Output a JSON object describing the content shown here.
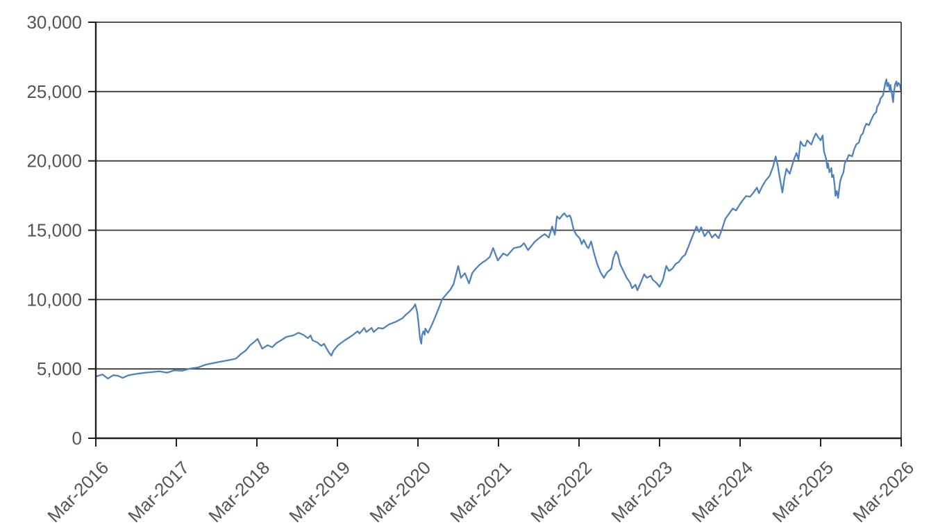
{
  "chart_data": {
    "type": "line",
    "x_axis": {
      "tick_labels": [
        "Mar-2016",
        "Mar-2017",
        "Mar-2018",
        "Mar-2019",
        "Mar-2020",
        "Mar-2021",
        "Mar-2022",
        "Mar-2023",
        "Mar-2024",
        "Mar-2025",
        "Mar-2026"
      ],
      "range_months": [
        0,
        120
      ],
      "months_per_tick": 12,
      "label_rotation_deg": -45
    },
    "y_axis": {
      "tick_labels": [
        "0",
        "5,000",
        "10,000",
        "15,000",
        "20,000",
        "25,000",
        "30,000"
      ],
      "tick_values": [
        0,
        5000,
        10000,
        15000,
        20000,
        25000,
        30000
      ],
      "ylim": [
        0,
        30000
      ]
    },
    "grid": true,
    "legend": false,
    "colors": {
      "line": "#4f81bd",
      "grid": "#3a3a3a",
      "axis": "#1f1f1f",
      "tick_text": "#545454",
      "background": "#ffffff"
    },
    "series": [
      {
        "points": [
          [
            0.0,
            4450
          ],
          [
            1.0,
            4600
          ],
          [
            1.8,
            4300
          ],
          [
            2.6,
            4550
          ],
          [
            3.3,
            4500
          ],
          [
            4.0,
            4350
          ],
          [
            4.9,
            4550
          ],
          [
            6.1,
            4650
          ],
          [
            7.4,
            4730
          ],
          [
            8.5,
            4780
          ],
          [
            9.5,
            4830
          ],
          [
            10.6,
            4730
          ],
          [
            11.7,
            4900
          ],
          [
            12.9,
            4870
          ],
          [
            14.0,
            5020
          ],
          [
            15.2,
            5100
          ],
          [
            16.4,
            5310
          ],
          [
            18.1,
            5480
          ],
          [
            19.9,
            5640
          ],
          [
            20.9,
            5750
          ],
          [
            21.6,
            6060
          ],
          [
            22.4,
            6350
          ],
          [
            23.0,
            6710
          ],
          [
            23.5,
            6900
          ],
          [
            24.1,
            7160
          ],
          [
            24.8,
            6460
          ],
          [
            25.6,
            6710
          ],
          [
            26.3,
            6560
          ],
          [
            26.9,
            6860
          ],
          [
            27.6,
            7060
          ],
          [
            28.4,
            7310
          ],
          [
            29.4,
            7410
          ],
          [
            30.2,
            7610
          ],
          [
            30.9,
            7460
          ],
          [
            31.6,
            7210
          ],
          [
            32.0,
            7410
          ],
          [
            32.3,
            7060
          ],
          [
            33.0,
            6910
          ],
          [
            33.6,
            6660
          ],
          [
            34.0,
            6810
          ],
          [
            34.4,
            6460
          ],
          [
            34.7,
            6210
          ],
          [
            35.1,
            5960
          ],
          [
            35.4,
            6310
          ],
          [
            36.1,
            6710
          ],
          [
            37.1,
            7060
          ],
          [
            38.2,
            7410
          ],
          [
            39.0,
            7710
          ],
          [
            39.3,
            7560
          ],
          [
            40.0,
            7960
          ],
          [
            40.3,
            7660
          ],
          [
            41.1,
            7960
          ],
          [
            41.4,
            7660
          ],
          [
            42.1,
            7960
          ],
          [
            42.8,
            7910
          ],
          [
            43.7,
            8210
          ],
          [
            44.7,
            8400
          ],
          [
            45.7,
            8660
          ],
          [
            46.2,
            8910
          ],
          [
            46.8,
            9160
          ],
          [
            47.3,
            9410
          ],
          [
            47.6,
            9660
          ],
          [
            47.9,
            9060
          ],
          [
            48.1,
            8210
          ],
          [
            48.3,
            7210
          ],
          [
            48.5,
            6810
          ],
          [
            48.6,
            7410
          ],
          [
            48.8,
            7710
          ],
          [
            49.0,
            7460
          ],
          [
            49.1,
            7910
          ],
          [
            49.5,
            7600
          ],
          [
            50.1,
            8200
          ],
          [
            50.7,
            8900
          ],
          [
            51.2,
            9500
          ],
          [
            51.6,
            10020
          ],
          [
            52.1,
            10300
          ],
          [
            52.8,
            10700
          ],
          [
            53.3,
            11100
          ],
          [
            54.0,
            12420
          ],
          [
            54.4,
            11570
          ],
          [
            55.0,
            11900
          ],
          [
            55.6,
            11170
          ],
          [
            56.1,
            11920
          ],
          [
            56.6,
            12220
          ],
          [
            57.1,
            12470
          ],
          [
            57.6,
            12670
          ],
          [
            58.1,
            12820
          ],
          [
            58.7,
            13070
          ],
          [
            59.2,
            13720
          ],
          [
            59.9,
            12820
          ],
          [
            60.7,
            13320
          ],
          [
            61.3,
            13170
          ],
          [
            62.3,
            13720
          ],
          [
            63.3,
            13820
          ],
          [
            63.8,
            14070
          ],
          [
            64.4,
            13570
          ],
          [
            65.4,
            14170
          ],
          [
            66.4,
            14570
          ],
          [
            66.9,
            14720
          ],
          [
            67.5,
            14470
          ],
          [
            68.0,
            15270
          ],
          [
            68.4,
            14670
          ],
          [
            68.7,
            16000
          ],
          [
            69.1,
            15820
          ],
          [
            69.5,
            16070
          ],
          [
            69.8,
            16220
          ],
          [
            70.2,
            15970
          ],
          [
            70.6,
            16070
          ],
          [
            70.8,
            15870
          ],
          [
            71.2,
            15020
          ],
          [
            71.6,
            14670
          ],
          [
            72.1,
            14420
          ],
          [
            72.4,
            14000
          ],
          [
            72.7,
            14300
          ],
          [
            73.2,
            13800
          ],
          [
            73.4,
            13700
          ],
          [
            73.8,
            14200
          ],
          [
            74.2,
            13400
          ],
          [
            74.5,
            12900
          ],
          [
            74.7,
            12570
          ],
          [
            75.2,
            11970
          ],
          [
            75.7,
            11570
          ],
          [
            76.2,
            11970
          ],
          [
            76.8,
            12220
          ],
          [
            77.1,
            12970
          ],
          [
            77.5,
            13470
          ],
          [
            77.8,
            13220
          ],
          [
            78.1,
            12570
          ],
          [
            78.6,
            12070
          ],
          [
            79.1,
            11570
          ],
          [
            79.6,
            11220
          ],
          [
            79.9,
            10820
          ],
          [
            80.4,
            11070
          ],
          [
            80.7,
            10670
          ],
          [
            81.2,
            11220
          ],
          [
            81.7,
            11820
          ],
          [
            82.1,
            11570
          ],
          [
            82.7,
            11720
          ],
          [
            83.0,
            11420
          ],
          [
            83.5,
            11220
          ],
          [
            84.0,
            10920
          ],
          [
            84.5,
            11420
          ],
          [
            85.0,
            12420
          ],
          [
            85.4,
            12070
          ],
          [
            85.9,
            12220
          ],
          [
            86.4,
            12570
          ],
          [
            86.9,
            12720
          ],
          [
            87.4,
            13070
          ],
          [
            87.8,
            13220
          ],
          [
            88.3,
            13820
          ],
          [
            88.9,
            14570
          ],
          [
            89.2,
            14920
          ],
          [
            89.5,
            15270
          ],
          [
            89.9,
            14870
          ],
          [
            90.2,
            15220
          ],
          [
            90.7,
            14570
          ],
          [
            91.3,
            14970
          ],
          [
            91.8,
            14470
          ],
          [
            92.3,
            14720
          ],
          [
            92.8,
            14420
          ],
          [
            93.3,
            15070
          ],
          [
            93.8,
            15820
          ],
          [
            94.4,
            16220
          ],
          [
            94.9,
            16570
          ],
          [
            95.4,
            16420
          ],
          [
            95.9,
            16820
          ],
          [
            96.4,
            17170
          ],
          [
            96.9,
            17470
          ],
          [
            97.5,
            17420
          ],
          [
            98.0,
            17720
          ],
          [
            98.5,
            18070
          ],
          [
            98.8,
            17670
          ],
          [
            99.3,
            18170
          ],
          [
            99.8,
            18570
          ],
          [
            100.4,
            18920
          ],
          [
            100.9,
            19570
          ],
          [
            101.3,
            20320
          ],
          [
            101.6,
            19720
          ],
          [
            101.8,
            19070
          ],
          [
            102.3,
            17720
          ],
          [
            102.6,
            18720
          ],
          [
            102.9,
            19420
          ],
          [
            103.4,
            19070
          ],
          [
            103.7,
            19570
          ],
          [
            104.0,
            20070
          ],
          [
            104.4,
            20570
          ],
          [
            104.7,
            20100
          ],
          [
            105.0,
            21400
          ],
          [
            105.4,
            21100
          ],
          [
            105.7,
            21080
          ],
          [
            106.0,
            21480
          ],
          [
            106.6,
            21180
          ],
          [
            107.0,
            21680
          ],
          [
            107.3,
            21980
          ],
          [
            107.6,
            21730
          ],
          [
            108.0,
            21480
          ],
          [
            108.3,
            21830
          ],
          [
            108.5,
            20680
          ],
          [
            108.8,
            20180
          ],
          [
            109.0,
            19480
          ],
          [
            109.1,
            19830
          ],
          [
            109.3,
            19180
          ],
          [
            109.6,
            19480
          ],
          [
            109.7,
            18830
          ],
          [
            109.9,
            18980
          ],
          [
            110.1,
            18180
          ],
          [
            110.2,
            17480
          ],
          [
            110.4,
            17830
          ],
          [
            110.6,
            17330
          ],
          [
            110.9,
            18480
          ],
          [
            111.1,
            18830
          ],
          [
            111.4,
            19180
          ],
          [
            111.6,
            19830
          ],
          [
            111.9,
            20080
          ],
          [
            112.2,
            20430
          ],
          [
            112.7,
            20330
          ],
          [
            113.0,
            20830
          ],
          [
            113.3,
            21180
          ],
          [
            113.7,
            21330
          ],
          [
            114.0,
            21830
          ],
          [
            114.3,
            21980
          ],
          [
            114.5,
            22330
          ],
          [
            114.8,
            22680
          ],
          [
            115.2,
            22580
          ],
          [
            115.6,
            23030
          ],
          [
            115.9,
            23330
          ],
          [
            116.3,
            23530
          ],
          [
            116.4,
            23880
          ],
          [
            116.8,
            24230
          ],
          [
            116.9,
            24480
          ],
          [
            117.3,
            24730
          ],
          [
            117.4,
            25030
          ],
          [
            117.6,
            25540
          ],
          [
            117.8,
            25880
          ],
          [
            117.9,
            25380
          ],
          [
            118.1,
            25630
          ],
          [
            118.3,
            25030
          ],
          [
            118.4,
            25480
          ],
          [
            118.6,
            24880
          ],
          [
            118.8,
            24230
          ],
          [
            118.9,
            24880
          ],
          [
            119.1,
            25540
          ],
          [
            119.3,
            25730
          ],
          [
            119.4,
            25380
          ],
          [
            119.6,
            25630
          ],
          [
            119.8,
            25480
          ],
          [
            120.0,
            25030
          ]
        ]
      }
    ]
  }
}
